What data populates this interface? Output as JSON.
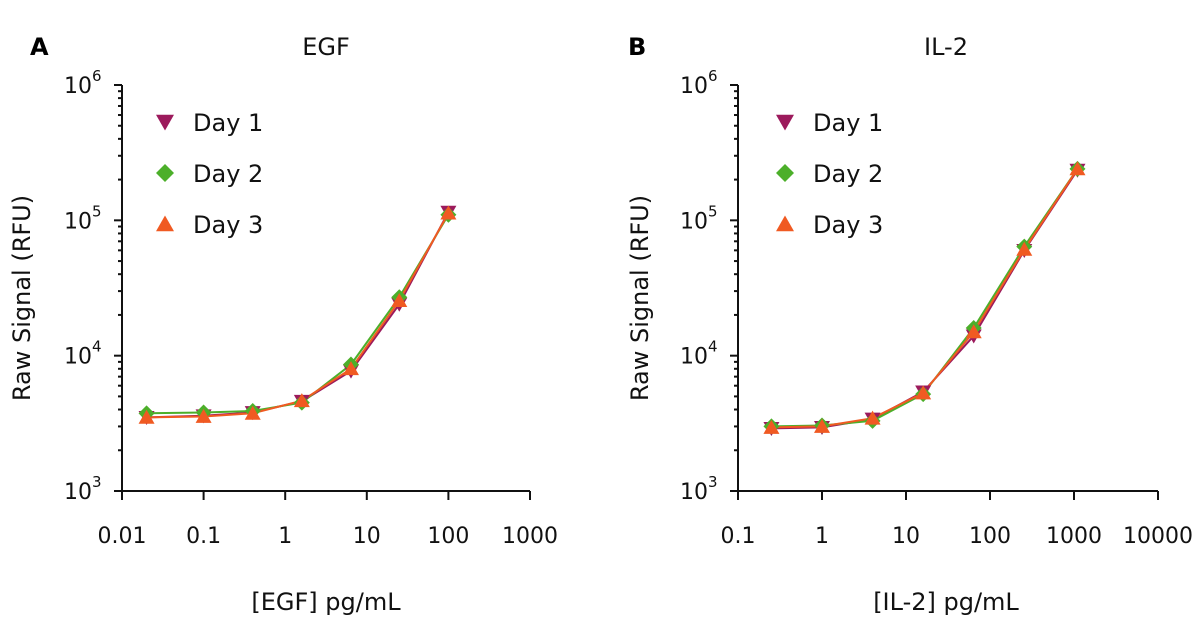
{
  "chart_data": [
    {
      "type": "line",
      "panel_letter": "A",
      "title": "EGF",
      "xlabel": "[EGF] pg/mL",
      "ylabel": "Raw Signal (RFU)",
      "xscale": "log",
      "yscale": "log",
      "xlim": [
        0.01,
        1000
      ],
      "ylim": [
        1000,
        1000000
      ],
      "xticks": [
        0.01,
        0.1,
        1,
        10,
        100,
        1000
      ],
      "xtick_labels": [
        "0.01",
        "0.1",
        "1",
        "10",
        "100",
        "1000"
      ],
      "yticks": [
        1000,
        10000,
        100000,
        1000000
      ],
      "ytick_labels": [
        {
          "base": "10",
          "exp": "3"
        },
        {
          "base": "10",
          "exp": "4"
        },
        {
          "base": "10",
          "exp": "5"
        },
        {
          "base": "10",
          "exp": "6"
        }
      ],
      "legend_position": "top-left",
      "grid": false,
      "x": [
        0.02,
        0.1,
        0.4,
        1.6,
        6.4,
        25,
        100
      ],
      "series": [
        {
          "name": "Day 1",
          "marker": "triangle-down",
          "color": "#9c1a5c",
          "values": [
            3500,
            3600,
            3800,
            4600,
            7700,
            24000,
            115000
          ]
        },
        {
          "name": "Day 2",
          "marker": "diamond",
          "color": "#4caf2a",
          "values": [
            3750,
            3800,
            3900,
            4500,
            8600,
            27000,
            110000
          ]
        },
        {
          "name": "Day 3",
          "marker": "triangle-up",
          "color": "#f05a22",
          "values": [
            3500,
            3550,
            3750,
            4650,
            8000,
            25500,
            113000
          ]
        }
      ]
    },
    {
      "type": "line",
      "panel_letter": "B",
      "title": "IL-2",
      "xlabel": "[IL-2] pg/mL",
      "ylabel": "Raw Signal (RFU)",
      "xscale": "log",
      "yscale": "log",
      "xlim": [
        0.1,
        10000
      ],
      "ylim": [
        1000,
        1000000
      ],
      "xticks": [
        0.1,
        1,
        10,
        100,
        1000,
        10000
      ],
      "xtick_labels": [
        "0.1",
        "1",
        "10",
        "100",
        "1000",
        "10000"
      ],
      "yticks": [
        1000,
        10000,
        100000,
        1000000
      ],
      "ytick_labels": [
        {
          "base": "10",
          "exp": "3"
        },
        {
          "base": "10",
          "exp": "4"
        },
        {
          "base": "10",
          "exp": "5"
        },
        {
          "base": "10",
          "exp": "6"
        }
      ],
      "legend_position": "top-left",
      "grid": false,
      "x": [
        0.25,
        1,
        4,
        16,
        64,
        256,
        1100
      ],
      "series": [
        {
          "name": "Day 1",
          "marker": "triangle-down",
          "color": "#9c1a5c",
          "values": [
            2900,
            2950,
            3400,
            5400,
            14000,
            60000,
            235000
          ]
        },
        {
          "name": "Day 2",
          "marker": "diamond",
          "color": "#4caf2a",
          "values": [
            3000,
            3050,
            3300,
            5200,
            16000,
            64000,
            240000
          ]
        },
        {
          "name": "Day 3",
          "marker": "triangle-up",
          "color": "#f05a22",
          "values": [
            2950,
            3000,
            3450,
            5300,
            15000,
            61000,
            240000
          ]
        }
      ]
    }
  ]
}
